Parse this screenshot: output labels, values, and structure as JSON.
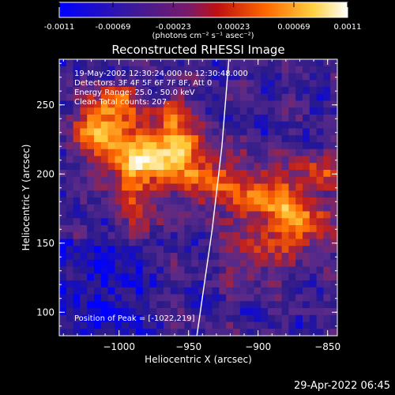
{
  "colorbar": {
    "ticks": [
      "-0.0011",
      "-0.00069",
      "-0.00023",
      "0.00023",
      "0.00069",
      "0.0011"
    ],
    "min": -0.0011,
    "max": 0.0011,
    "units_label": "(photons cm⁻² s⁻¹ asec⁻²)"
  },
  "chart_data": {
    "type": "heatmap",
    "title": "Reconstructed RHESSI Image",
    "xlabel": "Heliocentric X (arcsec)",
    "ylabel": "Heliocentric Y (arcsec)",
    "xlim": [
      -1043,
      -843
    ],
    "ylim": [
      83,
      283
    ],
    "xticks": [
      -1000,
      -950,
      -900,
      -850
    ],
    "yticks": [
      100,
      150,
      200,
      250
    ],
    "info_lines": [
      "19-May-2002 12:30:24.000 to 12:30:48.000",
      "Detectors: 3F 4F 5F 6F 7F 8F, Att 0",
      "Energy Range: 25.0 - 50.0 keV",
      "Clean     Total counts: 207."
    ],
    "peak_text": "Position of Peak = [-1022,219]",
    "peak_position": [
      -1022,
      219
    ],
    "colormap": [
      "#0000ff",
      "#2a1a8a",
      "#5a2a8a",
      "#c02020",
      "#ff6a00",
      "#ffd040",
      "#ffffff"
    ],
    "limb_curve": [
      [
        -944,
        83
      ],
      [
        -933,
        160
      ],
      [
        -926,
        220
      ],
      [
        -921,
        283
      ]
    ]
  },
  "footer_timestamp": "29-Apr-2022 06:45"
}
